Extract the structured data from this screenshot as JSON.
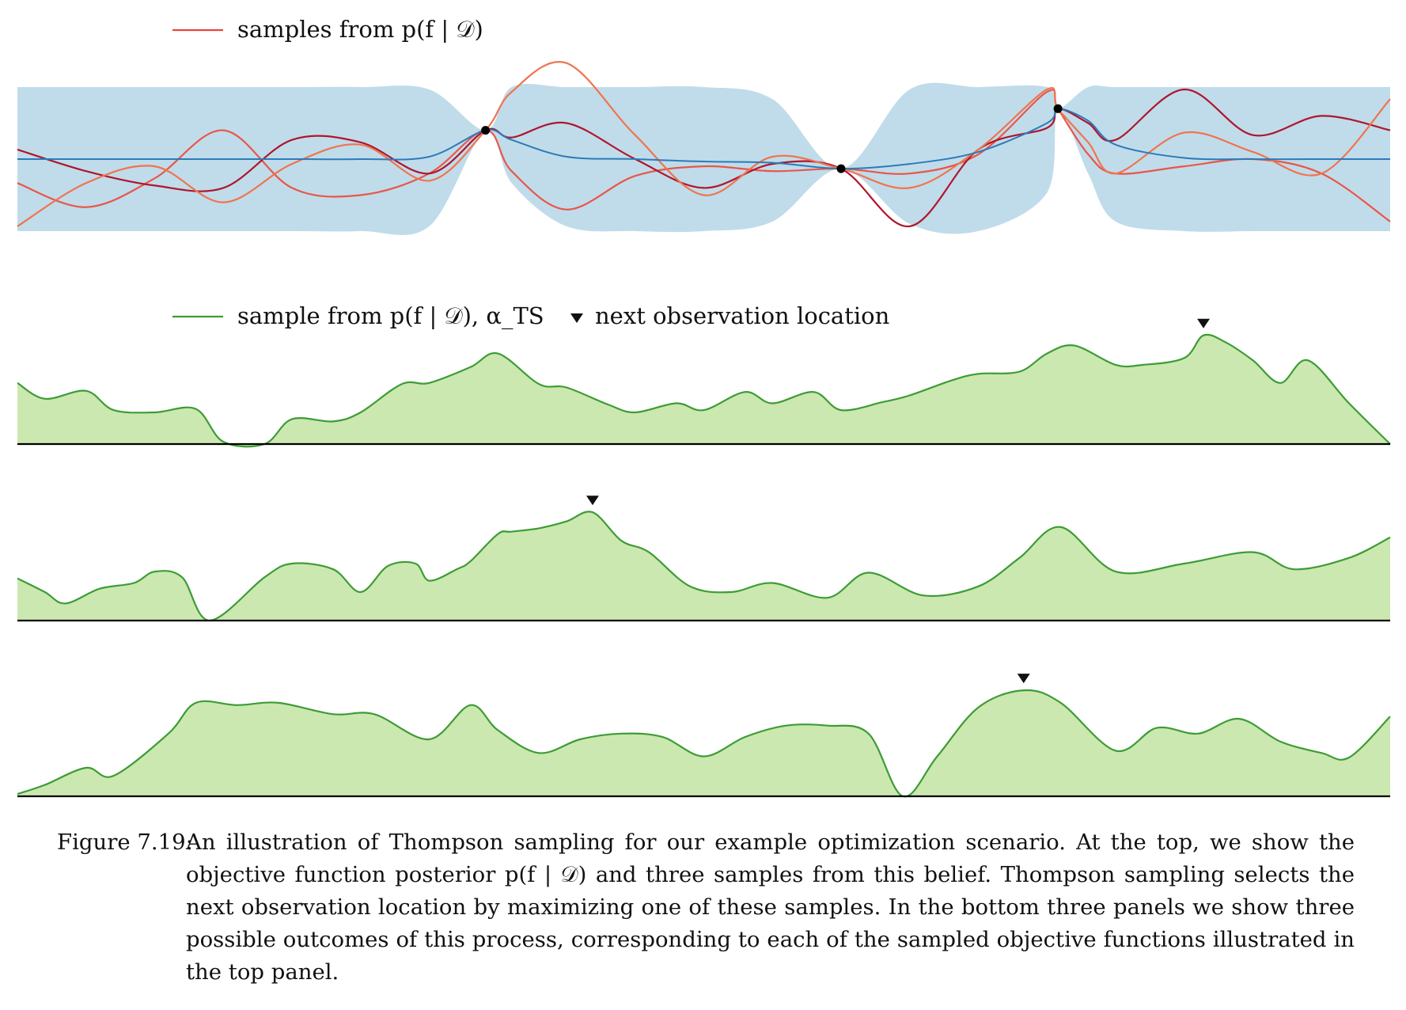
{
  "chart_data": [
    {
      "type": "line",
      "panel": "posterior",
      "legend": [
        {
          "label": "samples from p(f | 𝒟)",
          "color": "#e8453c"
        }
      ],
      "legend_placement": "top-left",
      "x_range": [
        0,
        1
      ],
      "y_range": [
        -3,
        3
      ],
      "grid": false,
      "axes_visible": false,
      "colors": {
        "band": "#c0dcea",
        "mean": "#2b7bb9",
        "samples": [
          "#e9564a",
          "#b0152d",
          "#f0744e"
        ],
        "observations": "#000000"
      },
      "observations": [
        {
          "x": 0.341,
          "y": 1.2
        },
        {
          "x": 0.6,
          "y": -0.4
        },
        {
          "x": 0.758,
          "y": 2.1
        }
      ],
      "x": [
        0.0,
        0.05,
        0.1,
        0.15,
        0.2,
        0.25,
        0.3,
        0.341,
        0.36,
        0.4,
        0.45,
        0.5,
        0.55,
        0.6,
        0.65,
        0.7,
        0.75,
        0.758,
        0.78,
        0.8,
        0.85,
        0.9,
        0.95,
        1.0
      ],
      "series": [
        {
          "name": "posterior mean",
          "values": [
            0.0,
            0.0,
            0.0,
            0.0,
            0.0,
            0.0,
            0.1,
            1.2,
            0.8,
            0.1,
            0.0,
            -0.1,
            -0.15,
            -0.4,
            -0.2,
            0.3,
            1.5,
            2.1,
            1.6,
            0.6,
            0.05,
            0.0,
            0.0,
            0.0
          ]
        },
        {
          "name": "upper band",
          "values": [
            3.0,
            3.0,
            3.0,
            3.0,
            3.0,
            3.0,
            2.9,
            1.2,
            3.0,
            3.0,
            3.0,
            3.0,
            2.5,
            -0.4,
            2.9,
            3.0,
            3.0,
            2.1,
            3.0,
            3.0,
            3.0,
            3.0,
            3.0,
            3.0
          ]
        },
        {
          "name": "lower band",
          "values": [
            -3.0,
            -3.0,
            -3.0,
            -3.0,
            -3.0,
            -3.0,
            -2.8,
            1.2,
            -1.0,
            -2.8,
            -3.0,
            -3.0,
            -2.6,
            -0.4,
            -2.7,
            -3.0,
            -1.4,
            2.1,
            -0.6,
            -2.6,
            -3.0,
            -3.0,
            -3.0,
            -3.0
          ]
        },
        {
          "name": "sample 1",
          "values": [
            -1.0,
            -2.0,
            -0.8,
            1.2,
            -1.2,
            -1.5,
            -0.6,
            1.2,
            -0.5,
            -2.1,
            -0.7,
            -0.3,
            -0.5,
            -0.4,
            -0.6,
            0.2,
            2.8,
            2.1,
            0.2,
            -0.6,
            -0.3,
            0.0,
            -0.6,
            -2.6
          ]
        },
        {
          "name": "sample 2",
          "values": [
            0.4,
            -0.5,
            -1.1,
            -1.2,
            0.8,
            0.7,
            -0.6,
            1.2,
            0.9,
            1.5,
            0.0,
            -1.2,
            -0.2,
            -0.4,
            -2.8,
            0.4,
            1.3,
            2.1,
            1.5,
            0.8,
            2.9,
            1.0,
            1.8,
            1.2
          ]
        },
        {
          "name": "sample 3",
          "values": [
            -2.8,
            -1.0,
            -0.3,
            -1.8,
            -0.2,
            0.6,
            -0.9,
            1.2,
            2.8,
            4.0,
            1.0,
            -1.5,
            0.1,
            -0.4,
            -1.2,
            0.4,
            2.9,
            2.1,
            0.7,
            -0.6,
            1.1,
            0.3,
            -0.6,
            2.5
          ]
        }
      ]
    },
    {
      "type": "area",
      "panel": "acquisition-1",
      "legend": [
        {
          "label": "sample from p(f | 𝒟), α_TS",
          "color": "#3d9c35"
        },
        {
          "label": "next observation location",
          "marker": "triangle-down"
        }
      ],
      "legend_placement": "top-left",
      "x_range": [
        0,
        1
      ],
      "y_range": [
        0,
        1
      ],
      "axes_visible": false,
      "colors": {
        "fill": "#cbe8b0",
        "line": "#3d9c35",
        "baseline": "#000000"
      },
      "next_observation_x": 0.864,
      "x": [
        0.0,
        0.02,
        0.05,
        0.07,
        0.1,
        0.13,
        0.15,
        0.18,
        0.2,
        0.23,
        0.25,
        0.28,
        0.3,
        0.33,
        0.35,
        0.38,
        0.4,
        0.43,
        0.45,
        0.48,
        0.5,
        0.53,
        0.55,
        0.58,
        0.6,
        0.63,
        0.65,
        0.68,
        0.7,
        0.73,
        0.75,
        0.77,
        0.8,
        0.82,
        0.85,
        0.864,
        0.88,
        0.9,
        0.92,
        0.94,
        0.97,
        1.0
      ],
      "series": [
        {
          "values": [
            0.54,
            0.4,
            0.47,
            0.3,
            0.28,
            0.31,
            0.02,
            0.0,
            0.22,
            0.2,
            0.28,
            0.53,
            0.54,
            0.68,
            0.8,
            0.53,
            0.5,
            0.35,
            0.28,
            0.36,
            0.3,
            0.46,
            0.36,
            0.46,
            0.3,
            0.37,
            0.43,
            0.56,
            0.62,
            0.64,
            0.8,
            0.87,
            0.7,
            0.7,
            0.76,
            0.96,
            0.9,
            0.74,
            0.54,
            0.74,
            0.36,
            0.0
          ]
        }
      ]
    },
    {
      "type": "area",
      "panel": "acquisition-2",
      "x_range": [
        0,
        1
      ],
      "y_range": [
        0,
        1
      ],
      "axes_visible": false,
      "colors": {
        "fill": "#cbe8b0",
        "line": "#3d9c35",
        "baseline": "#000000"
      },
      "next_observation_x": 0.419,
      "x": [
        0.0,
        0.02,
        0.035,
        0.06,
        0.085,
        0.1,
        0.12,
        0.14,
        0.18,
        0.2,
        0.23,
        0.25,
        0.27,
        0.29,
        0.3,
        0.32,
        0.33,
        0.35,
        0.36,
        0.38,
        0.4,
        0.419,
        0.44,
        0.46,
        0.49,
        0.52,
        0.55,
        0.59,
        0.62,
        0.66,
        0.7,
        0.73,
        0.76,
        0.8,
        0.85,
        0.9,
        0.93,
        0.97,
        1.0
      ],
      "series": [
        {
          "values": [
            0.37,
            0.25,
            0.15,
            0.28,
            0.33,
            0.43,
            0.38,
            0.0,
            0.38,
            0.5,
            0.45,
            0.25,
            0.48,
            0.5,
            0.35,
            0.45,
            0.52,
            0.76,
            0.78,
            0.81,
            0.87,
            0.95,
            0.7,
            0.6,
            0.3,
            0.25,
            0.33,
            0.2,
            0.42,
            0.22,
            0.3,
            0.55,
            0.82,
            0.43,
            0.5,
            0.6,
            0.45,
            0.55,
            0.73
          ]
        }
      ]
    },
    {
      "type": "area",
      "panel": "acquisition-3",
      "x_range": [
        0,
        1
      ],
      "y_range": [
        0,
        1
      ],
      "axes_visible": false,
      "colors": {
        "fill": "#cbe8b0",
        "line": "#3d9c35",
        "baseline": "#000000"
      },
      "next_observation_x": 0.733,
      "x": [
        0.0,
        0.02,
        0.05,
        0.07,
        0.11,
        0.13,
        0.16,
        0.19,
        0.23,
        0.26,
        0.3,
        0.33,
        0.35,
        0.38,
        0.41,
        0.44,
        0.47,
        0.5,
        0.53,
        0.56,
        0.59,
        0.62,
        0.645,
        0.67,
        0.7,
        0.733,
        0.76,
        0.8,
        0.83,
        0.86,
        0.89,
        0.92,
        0.95,
        0.97,
        1.0
      ],
      "series": [
        {
          "values": [
            0.02,
            0.1,
            0.25,
            0.18,
            0.55,
            0.82,
            0.8,
            0.82,
            0.72,
            0.72,
            0.5,
            0.8,
            0.58,
            0.38,
            0.5,
            0.55,
            0.52,
            0.35,
            0.52,
            0.62,
            0.62,
            0.55,
            0.0,
            0.35,
            0.78,
            0.93,
            0.82,
            0.4,
            0.6,
            0.55,
            0.68,
            0.48,
            0.38,
            0.34,
            0.7
          ]
        }
      ]
    }
  ],
  "caption": {
    "label": "Figure 7.19:",
    "text": "An illustration of Thompson sampling for our example optimization scenario. At the top, we show the objective function posterior p(f | 𝒟) and three samples from this belief. Thompson sampling selects the next observation location by maximizing one of these samples. In the bottom three panels we show three possible outcomes of this process, corresponding to each of the sampled objective functions illustrated in the top panel."
  }
}
